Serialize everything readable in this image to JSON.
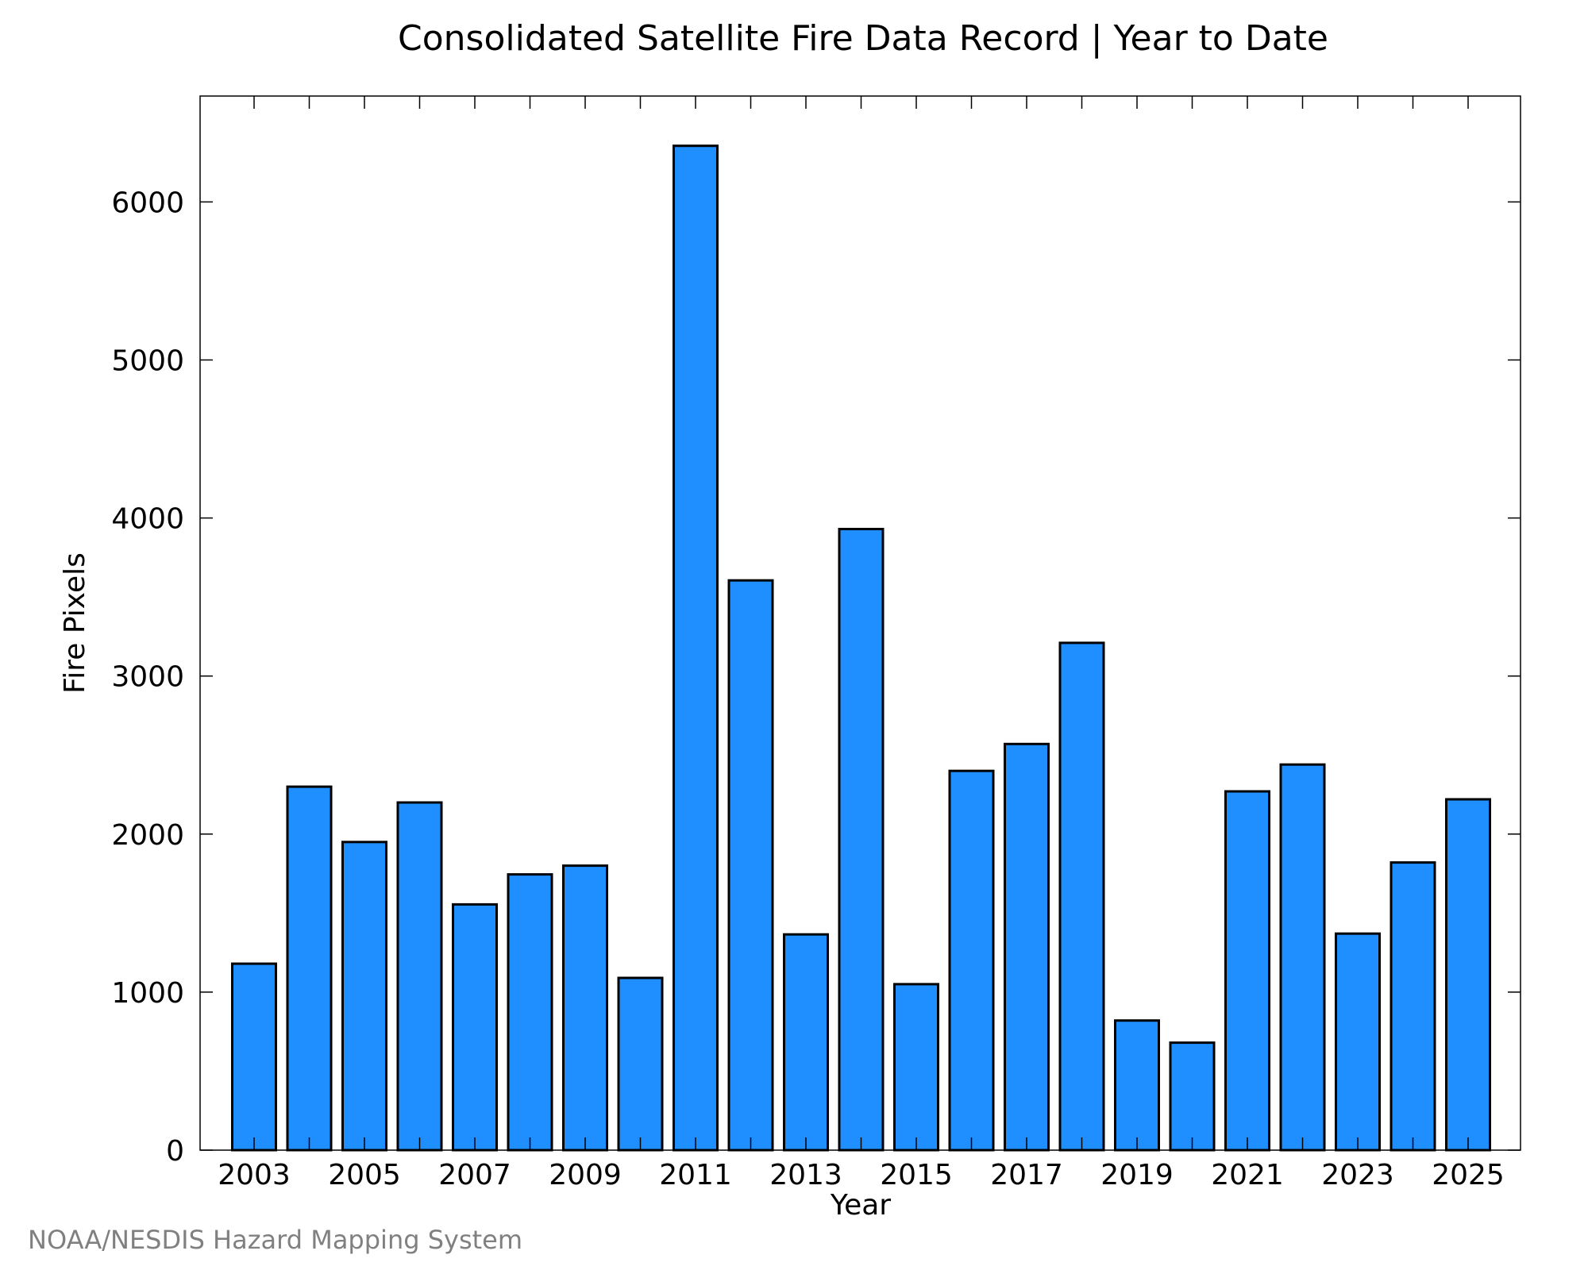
{
  "chart_data": {
    "type": "bar",
    "title": "Consolidated Satellite Fire Data Record | Year to Date",
    "xlabel": "Year",
    "ylabel": "Fire Pixels",
    "categories": [
      "2003",
      "2004",
      "2005",
      "2006",
      "2007",
      "2008",
      "2009",
      "2010",
      "2011",
      "2012",
      "2013",
      "2014",
      "2015",
      "2016",
      "2017",
      "2018",
      "2019",
      "2020",
      "2021",
      "2022",
      "2023",
      "2024",
      "2025"
    ],
    "values": [
      1180,
      2300,
      1950,
      2200,
      1555,
      1745,
      1800,
      1090,
      6355,
      3605,
      1365,
      3930,
      1050,
      2400,
      2570,
      3210,
      820,
      680,
      2270,
      2440,
      1370,
      1820,
      2220
    ],
    "xticks": [
      "2003",
      "2005",
      "2007",
      "2009",
      "2011",
      "2013",
      "2015",
      "2017",
      "2019",
      "2021",
      "2023",
      "2025"
    ],
    "yticks": [
      "0",
      "1000",
      "2000",
      "3000",
      "4000",
      "5000",
      "6000"
    ],
    "ylim": [
      0,
      6670
    ],
    "bar_color": "#1f8fff",
    "bar_edge_color": "#000000",
    "grid": false,
    "credit": "NOAA/NESDIS Hazard Mapping System"
  }
}
